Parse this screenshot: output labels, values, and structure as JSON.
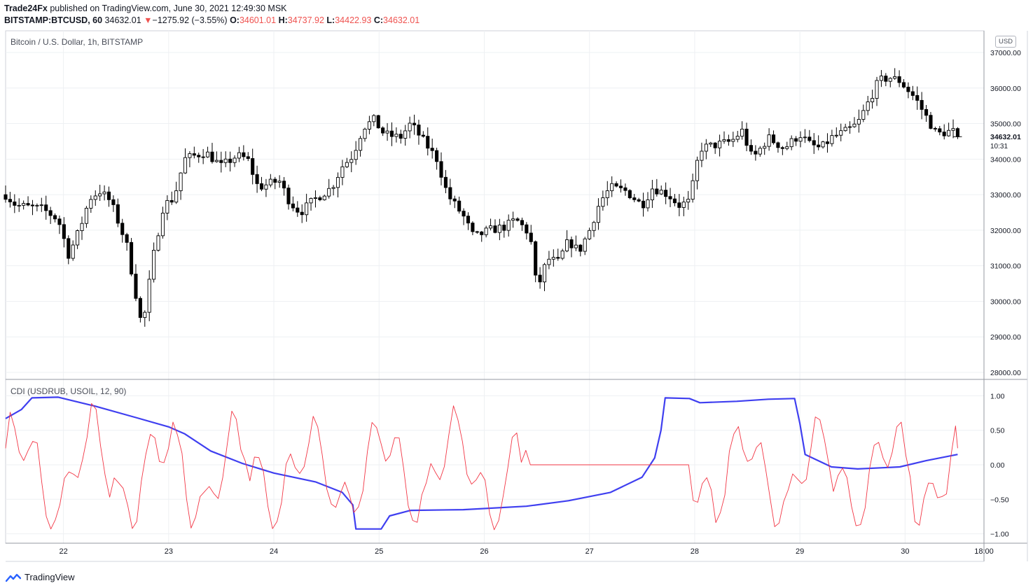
{
  "header": {
    "publisher": "Trade24Fx",
    "published_text": "published on TradingView.com, June 30, 2021 12:49:30 MSK",
    "symbol": "BITSTAMP:BTCUSD, 60",
    "last": "34632.01",
    "change_arrow": "▼",
    "change": "−1275.92 (−3.55%)",
    "o_label": "O:",
    "o": "34601.01",
    "h_label": "H:",
    "h": "34737.92",
    "l_label": "L:",
    "l": "34422.93",
    "c_label": "C:",
    "c": "34632.01"
  },
  "panes": {
    "price_label": "Bitcoin / U.S. Dollar, 1h, BITSTAMP",
    "indicator_label": "CDI (USDRUB, USOIL, 12, 90)",
    "currency": "USD",
    "last_price_label": "34632.01",
    "countdown": "10:31"
  },
  "footer": {
    "brand": "TradingView",
    "logo_icon": "tradingview-logo-icon"
  },
  "colors": {
    "up_body": "#ffffff",
    "down_body": "#000000",
    "cdi_fast": "#f23645",
    "cdi_slow": "#3f3ff0",
    "grid": "#eef0f3"
  },
  "chart_data": [
    {
      "type": "candlestick",
      "title": "Bitcoin / U.S. Dollar, 1h, BITSTAMP",
      "x_ticks": [
        "22",
        "23",
        "24",
        "25",
        "26",
        "27",
        "28",
        "29",
        "30",
        "18:00"
      ],
      "y_ticks": [
        28000,
        29000,
        30000,
        31000,
        32000,
        33000,
        34000,
        35000,
        36000,
        37000
      ],
      "ylim": [
        27800,
        37300
      ],
      "x_range": [
        21.45,
        30.75
      ],
      "anchors": [
        [
          21.45,
          33000
        ],
        [
          21.55,
          32700
        ],
        [
          21.8,
          32600
        ],
        [
          21.95,
          32300
        ],
        [
          22.05,
          31300
        ],
        [
          22.15,
          32000
        ],
        [
          22.25,
          32900
        ],
        [
          22.35,
          33100
        ],
        [
          22.45,
          32800
        ],
        [
          22.6,
          31600
        ],
        [
          22.7,
          30000
        ],
        [
          22.75,
          29200
        ],
        [
          22.85,
          31200
        ],
        [
          22.95,
          32700
        ],
        [
          23.05,
          32900
        ],
        [
          23.15,
          34000
        ],
        [
          23.35,
          34200
        ],
        [
          23.5,
          33800
        ],
        [
          23.65,
          34100
        ],
        [
          23.75,
          34000
        ],
        [
          23.85,
          33200
        ],
        [
          23.95,
          33300
        ],
        [
          24.05,
          33400
        ],
        [
          24.15,
          32800
        ],
        [
          24.25,
          32500
        ],
        [
          24.4,
          32900
        ],
        [
          24.55,
          33200
        ],
        [
          24.65,
          33800
        ],
        [
          24.75,
          34100
        ],
        [
          24.85,
          34900
        ],
        [
          24.95,
          35100
        ],
        [
          25.05,
          34700
        ],
        [
          25.2,
          34600
        ],
        [
          25.3,
          35000
        ],
        [
          25.45,
          34400
        ],
        [
          25.55,
          34000
        ],
        [
          25.65,
          33000
        ],
        [
          25.8,
          32400
        ],
        [
          25.9,
          31800
        ],
        [
          26.05,
          32000
        ],
        [
          26.2,
          32100
        ],
        [
          26.3,
          32300
        ],
        [
          26.4,
          32000
        ],
        [
          26.45,
          31600
        ],
        [
          26.5,
          30300
        ],
        [
          26.6,
          31200
        ],
        [
          26.7,
          31100
        ],
        [
          26.8,
          31700
        ],
        [
          26.9,
          31400
        ],
        [
          27.0,
          32000
        ],
        [
          27.1,
          32800
        ],
        [
          27.2,
          33200
        ],
        [
          27.35,
          33100
        ],
        [
          27.5,
          32700
        ],
        [
          27.6,
          33200
        ],
        [
          27.75,
          33000
        ],
        [
          27.85,
          32700
        ],
        [
          27.95,
          32800
        ],
        [
          28.05,
          34300
        ],
        [
          28.2,
          34400
        ],
        [
          28.35,
          34500
        ],
        [
          28.45,
          34800
        ],
        [
          28.55,
          34000
        ],
        [
          28.7,
          34600
        ],
        [
          28.85,
          34300
        ],
        [
          29.0,
          34700
        ],
        [
          29.1,
          34400
        ],
        [
          29.2,
          34300
        ],
        [
          29.3,
          34600
        ],
        [
          29.45,
          34800
        ],
        [
          29.55,
          35000
        ],
        [
          29.65,
          35600
        ],
        [
          29.75,
          36200
        ],
        [
          29.85,
          36300
        ],
        [
          29.95,
          36200
        ],
        [
          30.1,
          35700
        ],
        [
          30.2,
          35200
        ],
        [
          30.3,
          34700
        ],
        [
          30.45,
          34800
        ],
        [
          30.5,
          34632
        ]
      ]
    },
    {
      "type": "line",
      "title": "CDI (USDRUB, USOIL, 12, 90)",
      "x_ticks": [
        "22",
        "23",
        "24",
        "25",
        "26",
        "27",
        "28",
        "29",
        "30",
        "18:00"
      ],
      "y_ticks": [
        -1.0,
        -0.5,
        0.0,
        0.5,
        1.0
      ],
      "ylim": [
        -1.1,
        1.1
      ],
      "x_range": [
        21.45,
        30.75
      ],
      "series": [
        {
          "color": "#3f3ff0",
          "points": [
            [
              21.45,
              0.67
            ],
            [
              21.6,
              0.8
            ],
            [
              21.7,
              0.97
            ],
            [
              21.95,
              0.98
            ],
            [
              22.3,
              0.85
            ],
            [
              22.7,
              0.68
            ],
            [
              23.0,
              0.55
            ],
            [
              23.15,
              0.45
            ],
            [
              23.4,
              0.2
            ],
            [
              23.7,
              0.02
            ],
            [
              24.0,
              -0.12
            ],
            [
              24.4,
              -0.25
            ],
            [
              24.65,
              -0.4
            ],
            [
              24.75,
              -0.58
            ],
            [
              24.78,
              -0.93
            ],
            [
              25.02,
              -0.93
            ],
            [
              25.1,
              -0.74
            ],
            [
              25.3,
              -0.66
            ],
            [
              25.8,
              -0.65
            ],
            [
              26.4,
              -0.6
            ],
            [
              26.8,
              -0.52
            ],
            [
              27.2,
              -0.4
            ],
            [
              27.5,
              -0.18
            ],
            [
              27.62,
              0.1
            ],
            [
              27.68,
              0.5
            ],
            [
              27.72,
              0.97
            ],
            [
              27.95,
              0.96
            ],
            [
              28.05,
              0.9
            ],
            [
              28.4,
              0.92
            ],
            [
              28.7,
              0.95
            ],
            [
              28.95,
              0.96
            ],
            [
              29.0,
              0.6
            ],
            [
              29.05,
              0.15
            ],
            [
              29.3,
              -0.03
            ],
            [
              29.55,
              -0.06
            ],
            [
              29.95,
              -0.03
            ],
            [
              30.2,
              0.06
            ],
            [
              30.5,
              0.15
            ]
          ]
        }
      ]
    }
  ]
}
